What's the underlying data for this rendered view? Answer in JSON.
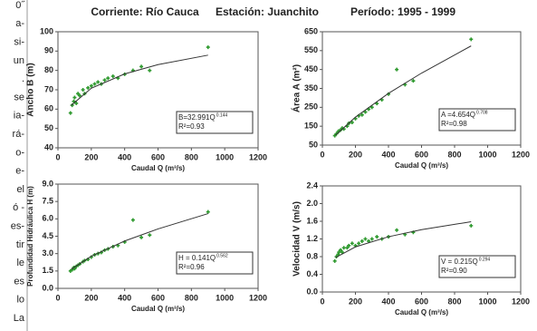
{
  "side_text": {
    "lines": [
      "0˝",
      "a-",
      "si-",
      "un",
      ".",
      "se",
      "ia-",
      "rá-",
      "o-",
      "e-",
      "el",
      "ó -",
      "es-",
      "tir",
      "le",
      "es",
      "lo",
      "La"
    ]
  },
  "header": {
    "river": "Corriente: Río Cauca",
    "station": "Estación: Juanchito",
    "period": "Período: 1995 - 1999"
  },
  "chart_data": [
    {
      "type": "scatter",
      "ylabel": "Ancho B (m)",
      "xlabel": "Caudal Q (m³/s)",
      "color": "#2f9a2f",
      "x": [
        75,
        85,
        95,
        100,
        110,
        120,
        130,
        150,
        160,
        180,
        200,
        220,
        240,
        260,
        280,
        300,
        330,
        360,
        400,
        450,
        500,
        550,
        900
      ],
      "values": [
        58,
        62,
        64,
        66,
        63,
        68,
        67,
        70,
        68,
        71,
        72,
        73,
        74,
        73,
        75,
        76,
        77,
        76,
        78,
        80,
        82,
        80,
        92
      ],
      "trendline": {
        "x": [
          80,
          200,
          400,
          600,
          900
        ],
        "values": [
          62,
          70.8,
          78.2,
          83,
          87.9
        ]
      },
      "equation": "B=32.991Q",
      "exponent": "0.144",
      "r2": "R²=0.93",
      "xlim": [
        0,
        1200
      ],
      "xticks": [
        0,
        200,
        400,
        600,
        800,
        1000,
        1200
      ],
      "ylim": [
        40,
        100
      ],
      "yticks": [
        40,
        50,
        60,
        70,
        80,
        90,
        100
      ]
    },
    {
      "type": "scatter",
      "ylabel": "Área A (m²)",
      "xlabel": "Caudal Q (m³/s)",
      "color": "#2f9a2f",
      "x": [
        75,
        85,
        95,
        100,
        110,
        120,
        130,
        150,
        160,
        180,
        200,
        220,
        240,
        260,
        280,
        300,
        330,
        360,
        400,
        450,
        500,
        550,
        900
      ],
      "values": [
        100,
        110,
        120,
        125,
        130,
        140,
        135,
        150,
        165,
        170,
        190,
        205,
        210,
        225,
        240,
        250,
        270,
        290,
        320,
        450,
        370,
        390,
        610
      ],
      "trendline": {
        "x": [
          80,
          200,
          400,
          600,
          900
        ],
        "values": [
          103,
          198,
          324,
          431,
          575
        ]
      },
      "equation": "A =4.654Q",
      "exponent": "0.708",
      "r2": "R²=0.98",
      "xlim": [
        0,
        1200
      ],
      "xticks": [
        0,
        200,
        400,
        600,
        800,
        1000,
        1200
      ],
      "ylim": [
        50,
        650
      ],
      "yticks": [
        50,
        150,
        250,
        350,
        450,
        550,
        650
      ]
    },
    {
      "type": "scatter",
      "ylabel": "Profundidad Hidráulica H (m)",
      "xlabel": "Caudal Q (m³/s)",
      "color": "#2f9a2f",
      "x": [
        75,
        85,
        95,
        100,
        110,
        120,
        130,
        150,
        160,
        180,
        200,
        220,
        240,
        260,
        280,
        300,
        330,
        360,
        400,
        450,
        500,
        550,
        900
      ],
      "values": [
        1.5,
        1.6,
        1.8,
        1.7,
        1.9,
        2.0,
        2.1,
        2.3,
        2.4,
        2.5,
        2.7,
        2.9,
        3.0,
        3.1,
        3.3,
        3.4,
        3.6,
        3.7,
        4.0,
        5.9,
        4.4,
        4.6,
        6.6
      ],
      "trendline": {
        "x": [
          80,
          200,
          400,
          600,
          900
        ],
        "values": [
          1.66,
          2.77,
          4.09,
          5.13,
          6.45
        ]
      },
      "equation": "H = 0.141Q",
      "exponent": "0.562",
      "r2": "R²=0.96",
      "xlim": [
        0,
        1200
      ],
      "xticks": [
        0,
        200,
        400,
        600,
        800,
        1000,
        1200
      ],
      "ylim": [
        0,
        9
      ],
      "yticks": [
        {
          "value": 0,
          "label": "0.0"
        },
        1.5,
        {
          "value": 3,
          "label": "3.0"
        },
        4.5,
        {
          "value": 6,
          "label": "6.0"
        },
        7.5,
        {
          "value": 9,
          "label": "9.0"
        }
      ]
    },
    {
      "type": "scatter",
      "ylabel": "Velocidad V (m/s)",
      "xlabel": "Caudal Q (m³/s)",
      "color": "#2f9a2f",
      "x": [
        75,
        85,
        95,
        100,
        110,
        120,
        130,
        150,
        160,
        180,
        200,
        220,
        240,
        260,
        280,
        300,
        330,
        360,
        400,
        450,
        500,
        550,
        900
      ],
      "values": [
        0.7,
        0.8,
        0.85,
        0.9,
        0.95,
        0.9,
        1.0,
        1.0,
        1.05,
        1.1,
        1.05,
        1.1,
        1.15,
        1.2,
        1.15,
        1.2,
        1.25,
        1.2,
        1.25,
        1.4,
        1.3,
        1.35,
        1.5
      ],
      "trendline": {
        "x": [
          80,
          200,
          400,
          600,
          900
        ],
        "values": [
          0.78,
          1.02,
          1.25,
          1.41,
          1.59
        ]
      },
      "equation": "V = 0.215Q",
      "exponent": "0.294",
      "r2": "R²=0.90",
      "xlim": [
        0,
        1200
      ],
      "xticks": [
        0,
        200,
        400,
        600,
        800,
        1000,
        1200
      ],
      "ylim": [
        0,
        2.4
      ],
      "yticks": [
        {
          "value": 0,
          "label": "0.0"
        },
        0.4,
        0.8,
        1.2,
        1.6,
        {
          "value": 2,
          "label": "2.0"
        },
        2.4
      ]
    }
  ]
}
